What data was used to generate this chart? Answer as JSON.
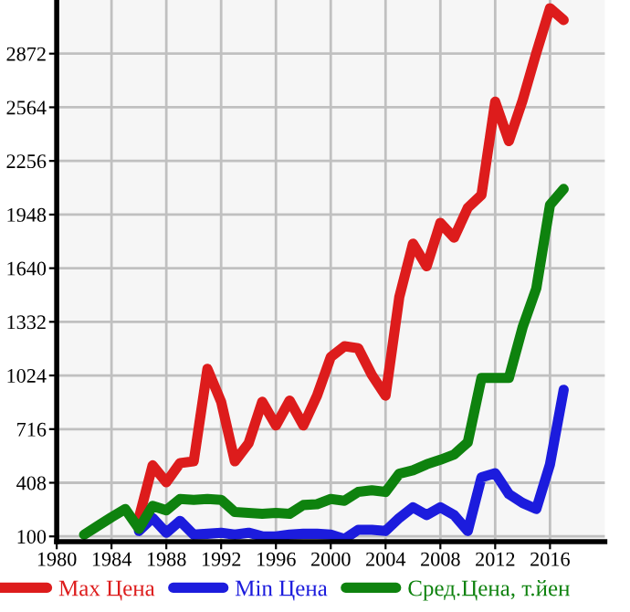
{
  "chart_data": {
    "type": "line",
    "x": [
      1982,
      1983,
      1984,
      1985,
      1986,
      1987,
      1988,
      1989,
      1990,
      1991,
      1992,
      1993,
      1994,
      1995,
      1996,
      1997,
      1998,
      1999,
      2000,
      2001,
      2002,
      2003,
      2004,
      2005,
      2006,
      2007,
      2008,
      2009,
      2010,
      2011,
      2012,
      2013,
      2014,
      2015,
      2016,
      2017
    ],
    "series": [
      {
        "name": "Max Цена",
        "color": "#dd1c1c",
        "values": [
          null,
          null,
          null,
          null,
          206,
          508,
          411,
          521,
          531,
          1062,
          873,
          531,
          634,
          873,
          737,
          880,
          737,
          908,
          1130,
          1192,
          1181,
          1027,
          908,
          1473,
          1781,
          1651,
          1900,
          1815,
          1987,
          2061,
          2596,
          2370,
          2603,
          2876,
          3133,
          3065
        ]
      },
      {
        "name": "Min Цена",
        "color": "#1c1cdd",
        "values": [
          null,
          null,
          null,
          null,
          131,
          206,
          121,
          189,
          110,
          115,
          121,
          110,
          121,
          100,
          100,
          110,
          115,
          115,
          110,
          85,
          138,
          138,
          131,
          206,
          267,
          223,
          267,
          223,
          131,
          439,
          463,
          343,
          292,
          257,
          514,
          942
        ]
      },
      {
        "name": "Сред.Цена, т.йен",
        "color": "#0e820e",
        "values": [
          110,
          160,
          210,
          257,
          144,
          275,
          250,
          315,
          310,
          315,
          310,
          240,
          235,
          230,
          235,
          230,
          280,
          285,
          315,
          305,
          355,
          365,
          355,
          460,
          480,
          514,
          540,
          570,
          640,
          1010,
          1010,
          1010,
          1300,
          1524,
          2003,
          2095
        ]
      }
    ],
    "xlim": [
      1980,
      2020
    ],
    "xticks": [
      1980,
      1984,
      1988,
      1992,
      1996,
      2000,
      2004,
      2008,
      2012,
      2016
    ],
    "ylim": [
      70,
      3180
    ],
    "yticks": [
      100,
      408,
      716,
      1024,
      1332,
      1640,
      1948,
      2256,
      2564,
      2872
    ],
    "grid": true,
    "legend": "bottom",
    "marker": "none",
    "line_style": "solid"
  }
}
